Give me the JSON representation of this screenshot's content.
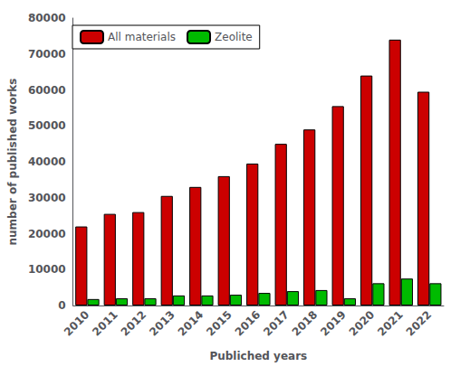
{
  "chart_data": {
    "type": "bar",
    "categories": [
      "2010",
      "2011",
      "2012",
      "2013",
      "2014",
      "2015",
      "2016",
      "2017",
      "2018",
      "2019",
      "2020",
      "2021",
      "2022"
    ],
    "series": [
      {
        "name": "All materials",
        "color": "#cc0000",
        "values": [
          22000,
          25500,
          26000,
          30500,
          33000,
          36000,
          39500,
          45000,
          49000,
          55500,
          64000,
          74000,
          59500
        ]
      },
      {
        "name": "Zeolite",
        "color": "#00bb00",
        "values": [
          1800,
          2000,
          2000,
          2800,
          2800,
          3000,
          3500,
          4000,
          4300,
          2000,
          6200,
          7500,
          6200
        ]
      }
    ],
    "xlabel": "Publiched years",
    "ylabel": "number of published works",
    "ylim": [
      0,
      80000
    ],
    "yticks": [
      0,
      10000,
      20000,
      30000,
      40000,
      50000,
      60000,
      70000,
      80000
    ],
    "grid": false,
    "legend": "upper left"
  }
}
